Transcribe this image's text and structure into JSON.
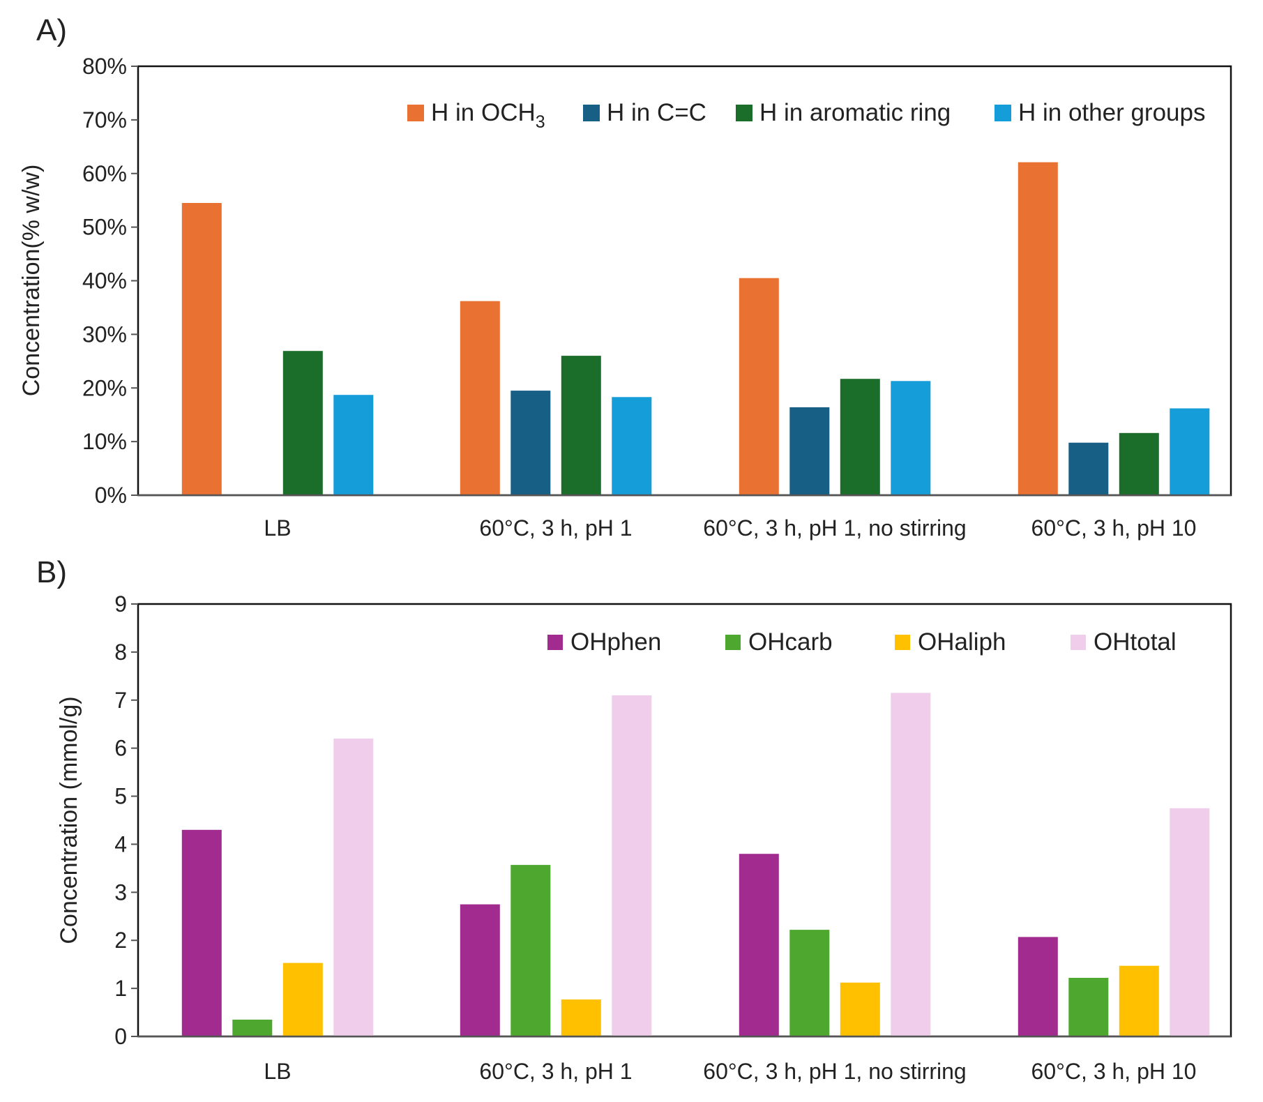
{
  "chart_data": [
    {
      "panel_label": "A)",
      "type": "bar",
      "categories": [
        "LB",
        "60°C, 3 h, pH 1",
        "60°C, 3 h, pH 1, no stirring",
        "60°C, 3 h, pH 10"
      ],
      "ylabel": "Concentration(% w/w)",
      "ylim": [
        0,
        80
      ],
      "yticks": [
        0,
        10,
        20,
        30,
        40,
        50,
        60,
        70,
        80
      ],
      "ytick_labels": [
        "0%",
        "10%",
        "20%",
        "30%",
        "40%",
        "50%",
        "60%",
        "70%",
        "80%"
      ],
      "legend_position": "top-right",
      "grid": false,
      "series": [
        {
          "name": "H in OCH3",
          "legend_main": "H in OCH",
          "legend_sub": "3",
          "color": "#E97132",
          "values": [
            54.5,
            36.2,
            40.5,
            62.1
          ]
        },
        {
          "name": "H in C=C",
          "color": "#185F86",
          "values": [
            0,
            19.5,
            16.4,
            9.8
          ]
        },
        {
          "name": "H in aromatic ring",
          "color": "#1B6D2A",
          "values": [
            26.9,
            26.0,
            21.7,
            11.6
          ]
        },
        {
          "name": "H in other groups",
          "color": "#149DD8",
          "values": [
            18.7,
            18.3,
            21.3,
            16.2
          ]
        }
      ]
    },
    {
      "panel_label": "B)",
      "type": "bar",
      "categories": [
        "LB",
        "60°C, 3 h, pH 1",
        "60°C, 3 h, pH 1, no stirring",
        "60°C, 3 h, pH 10"
      ],
      "ylabel": "Concentration (mmol/g)",
      "ylim": [
        0,
        9
      ],
      "yticks": [
        0,
        1,
        2,
        3,
        4,
        5,
        6,
        7,
        8,
        9
      ],
      "ytick_labels": [
        "0",
        "1",
        "2",
        "3",
        "4",
        "5",
        "6",
        "7",
        "8",
        "9"
      ],
      "legend_position": "top-right",
      "grid": false,
      "series": [
        {
          "name": "OHphen",
          "color": "#A12B8E",
          "values": [
            4.3,
            2.75,
            3.8,
            2.07
          ]
        },
        {
          "name": "OHcarb",
          "color": "#4EA72E",
          "values": [
            0.35,
            3.57,
            2.22,
            1.22
          ]
        },
        {
          "name": "OHaliph",
          "color": "#FFC000",
          "values": [
            1.53,
            0.77,
            1.12,
            1.47
          ]
        },
        {
          "name": "OHtotal",
          "color": "#F0CEEB",
          "values": [
            6.2,
            7.1,
            7.15,
            4.75
          ]
        }
      ]
    }
  ]
}
